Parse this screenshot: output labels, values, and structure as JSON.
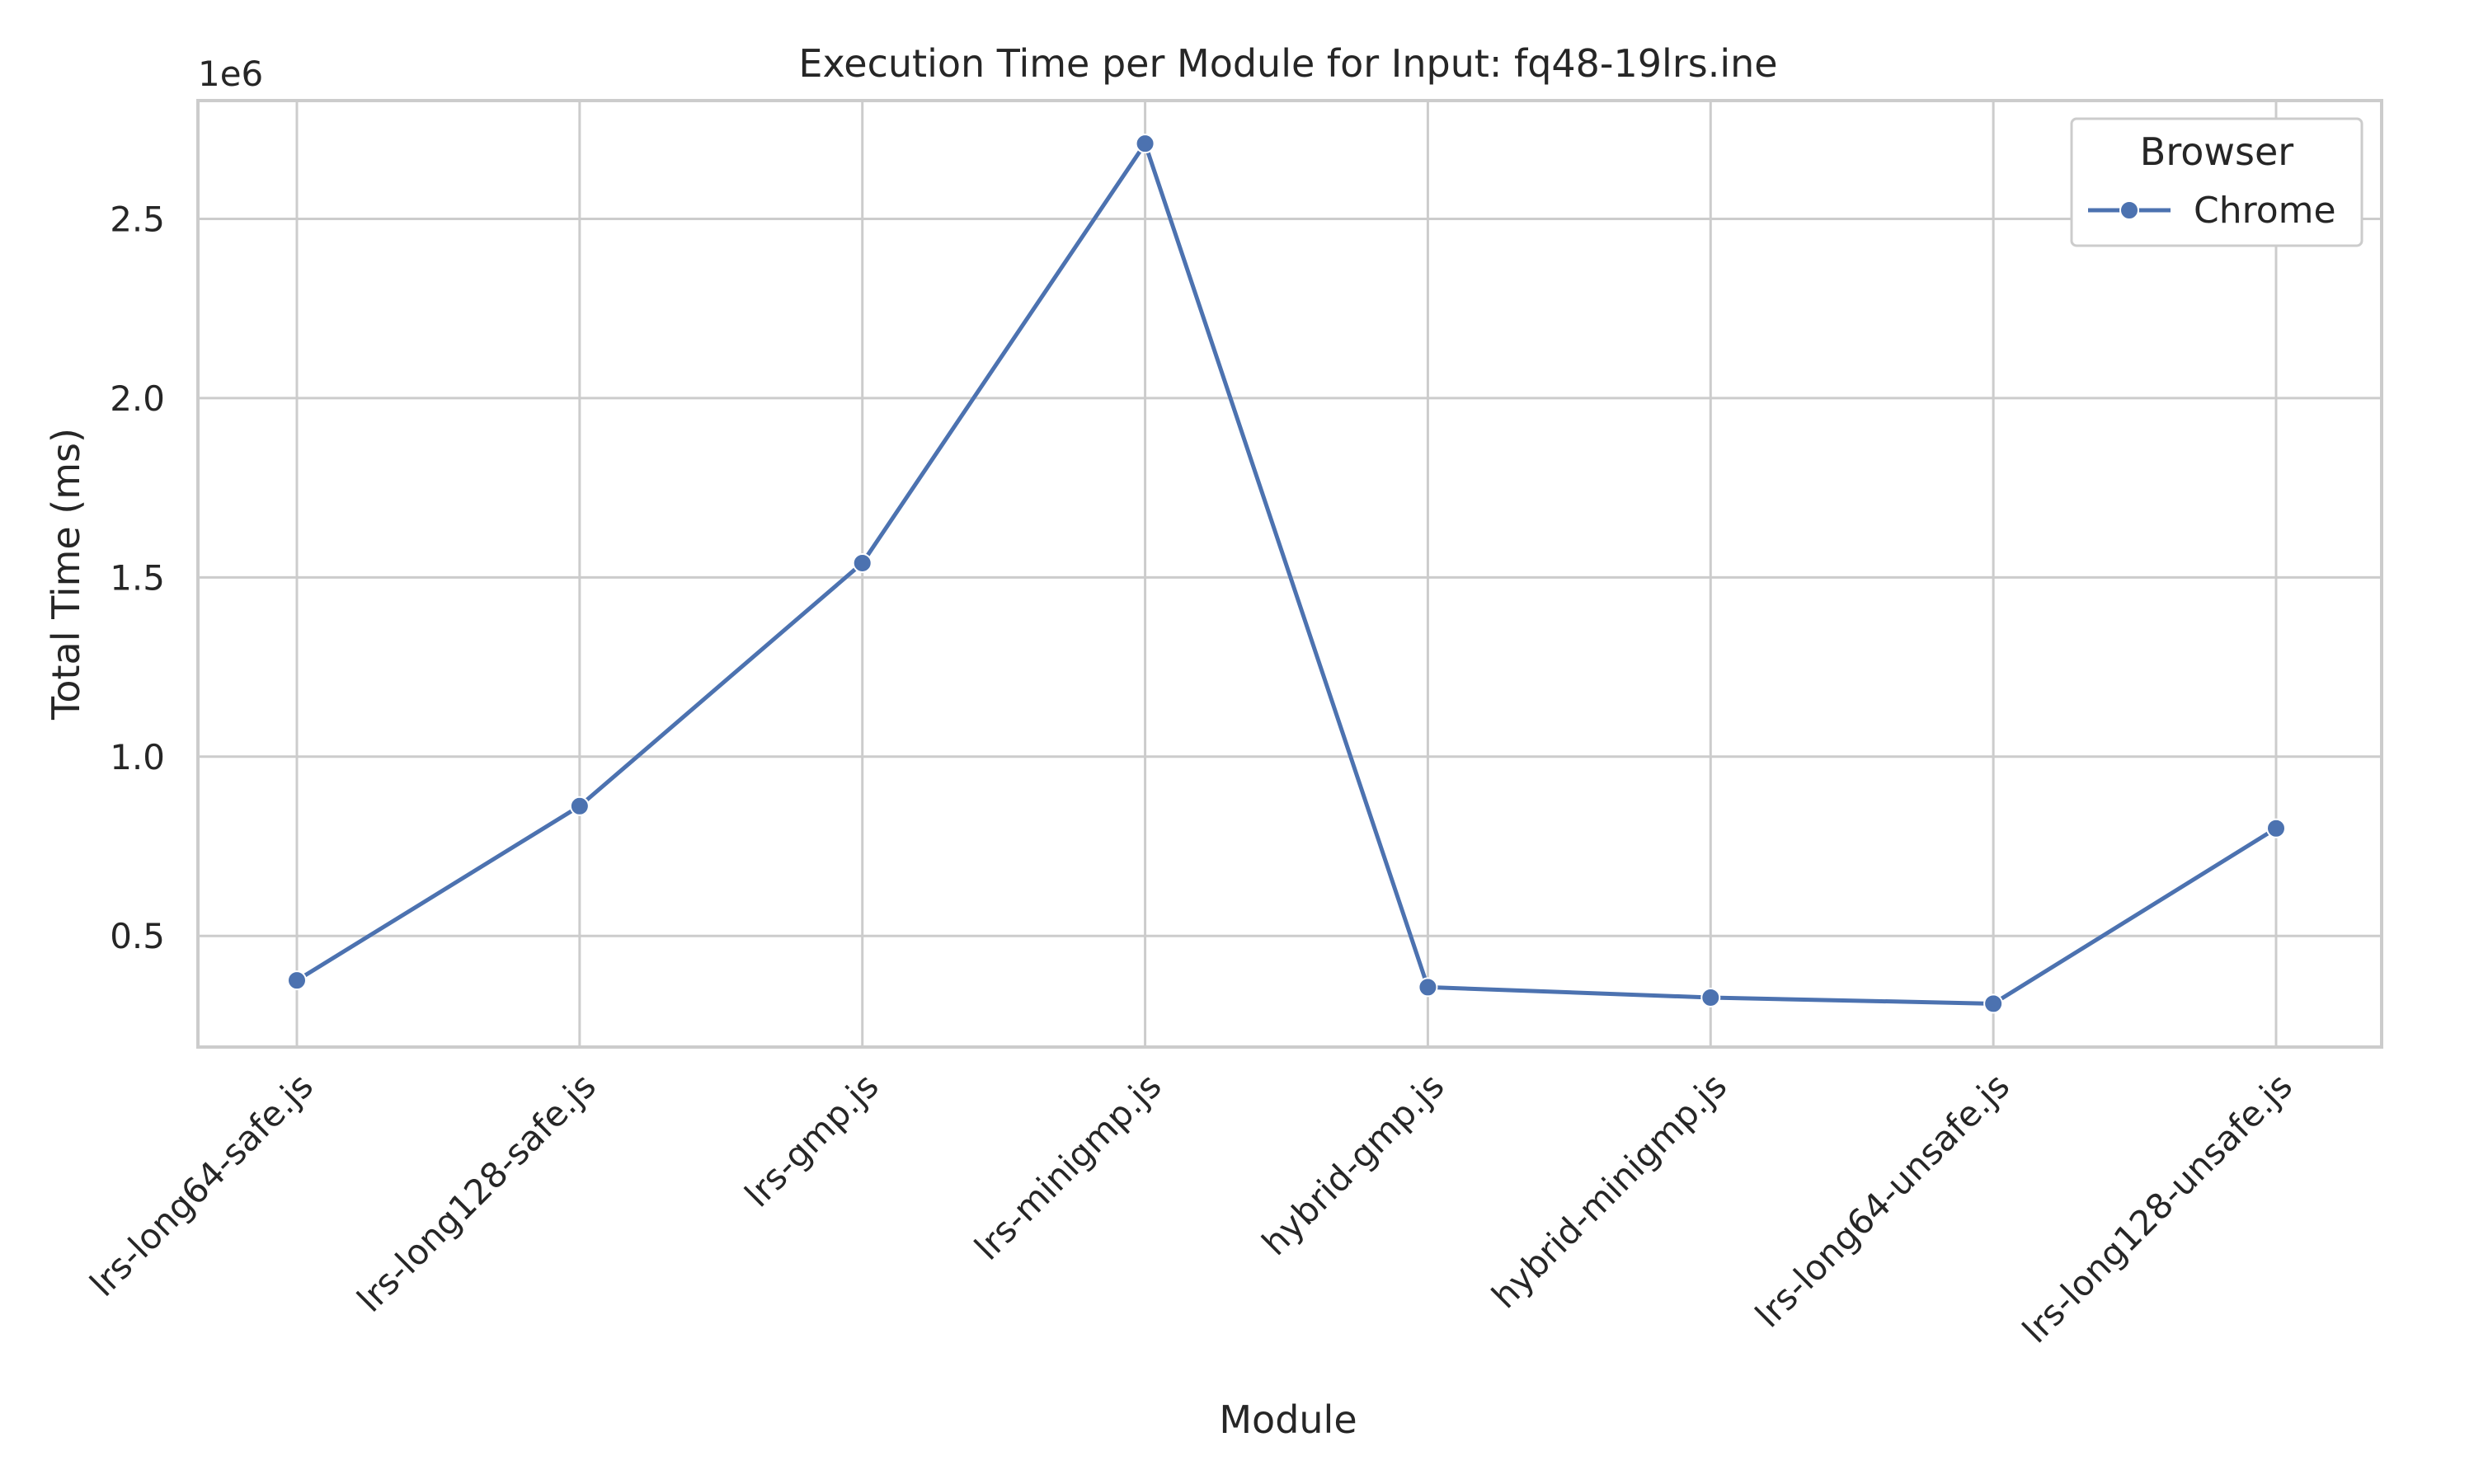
{
  "chart_data": {
    "type": "line",
    "title": "Execution Time per Module for Input: fq48-19lrs.ine",
    "xlabel": "Module",
    "ylabel": "Total Time (ms)",
    "y_offset_label": "1e6",
    "categories": [
      "lrs-long64-safe.js",
      "lrs-long128-safe.js",
      "lrs-gmp.js",
      "lrs-minigmp.js",
      "hybrid-gmp.js",
      "hybrid-minigmp.js",
      "lrs-long64-unsafe.js",
      "lrs-long128-unsafe.js"
    ],
    "series": [
      {
        "name": "Chrome",
        "color": "#4c72b0",
        "values": [
          376000,
          862000,
          1540000,
          2710000,
          357000,
          328000,
          311000,
          800000
        ]
      }
    ],
    "ylim": [
      190000,
      2830000
    ],
    "yticks": [
      500000,
      1000000,
      1500000,
      2000000,
      2500000
    ],
    "ytick_labels": [
      "0.5",
      "1.0",
      "1.5",
      "2.0",
      "2.5"
    ],
    "grid": true,
    "legend": {
      "title": "Browser",
      "placement": "top-right"
    }
  }
}
